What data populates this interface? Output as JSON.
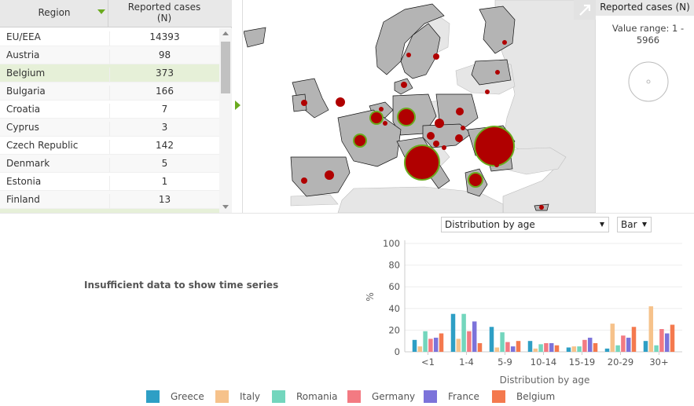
{
  "table": {
    "col_region": "Region",
    "col_cases_line1": "Reported cases",
    "col_cases_line2": "(N)",
    "rows": [
      {
        "region": "EU/EEA",
        "cases": "14393"
      },
      {
        "region": "Austria",
        "cases": "98"
      },
      {
        "region": "Belgium",
        "cases": "373",
        "selected": true
      },
      {
        "region": "Bulgaria",
        "cases": "166"
      },
      {
        "region": "Croatia",
        "cases": "7"
      },
      {
        "region": "Cyprus",
        "cases": "3"
      },
      {
        "region": "Czech Republic",
        "cases": "142"
      },
      {
        "region": "Denmark",
        "cases": "5"
      },
      {
        "region": "Estonia",
        "cases": "1"
      },
      {
        "region": "Finland",
        "cases": "13"
      }
    ]
  },
  "map_legend": {
    "title": "Reported cases (N)",
    "value_range_line1": "Value range: 1 -",
    "value_range_line2": "5966"
  },
  "controls": {
    "distribution": "Distribution by age",
    "chart_type": "Bar"
  },
  "time_series_message": "Insufficient data to show time series",
  "colors": {
    "accent": "#6aaa1e",
    "bubble": "#b00000",
    "land": "#b4b4b4",
    "land_other": "#e6e6e6"
  },
  "icons": [
    "sort-arrow-icon",
    "expand-icon",
    "collapse-arrow-icon",
    "dropdown-arrow-icon"
  ],
  "chart_data": {
    "type": "bar",
    "xlabel": "Distribution by age",
    "ylabel": "%",
    "ylim": [
      0,
      100
    ],
    "yticks": [
      "0",
      "20",
      "40",
      "60",
      "80",
      "100"
    ],
    "categories": [
      "<1",
      "1-4",
      "5-9",
      "10-14",
      "15-19",
      "20-29",
      "30+"
    ],
    "legend_position": "bottom",
    "series": [
      {
        "name": "Greece",
        "color": "#2e9fc5",
        "values": [
          11,
          35,
          23,
          10,
          4,
          3,
          10
        ]
      },
      {
        "name": "Italy",
        "color": "#f6c28b",
        "values": [
          5,
          12,
          4,
          3,
          5,
          26,
          42
        ]
      },
      {
        "name": "Romania",
        "color": "#73d6bd",
        "values": [
          19,
          35,
          18,
          7,
          5,
          6,
          6
        ]
      },
      {
        "name": "Germany",
        "color": "#f37a82",
        "values": [
          12,
          19,
          9,
          8,
          11,
          15,
          21
        ]
      },
      {
        "name": "France",
        "color": "#7c73da",
        "values": [
          13,
          28,
          5,
          8,
          13,
          13,
          17
        ]
      },
      {
        "name": "Belgium",
        "color": "#f4794e",
        "values": [
          17,
          8,
          10,
          6,
          8,
          23,
          25
        ]
      }
    ]
  }
}
